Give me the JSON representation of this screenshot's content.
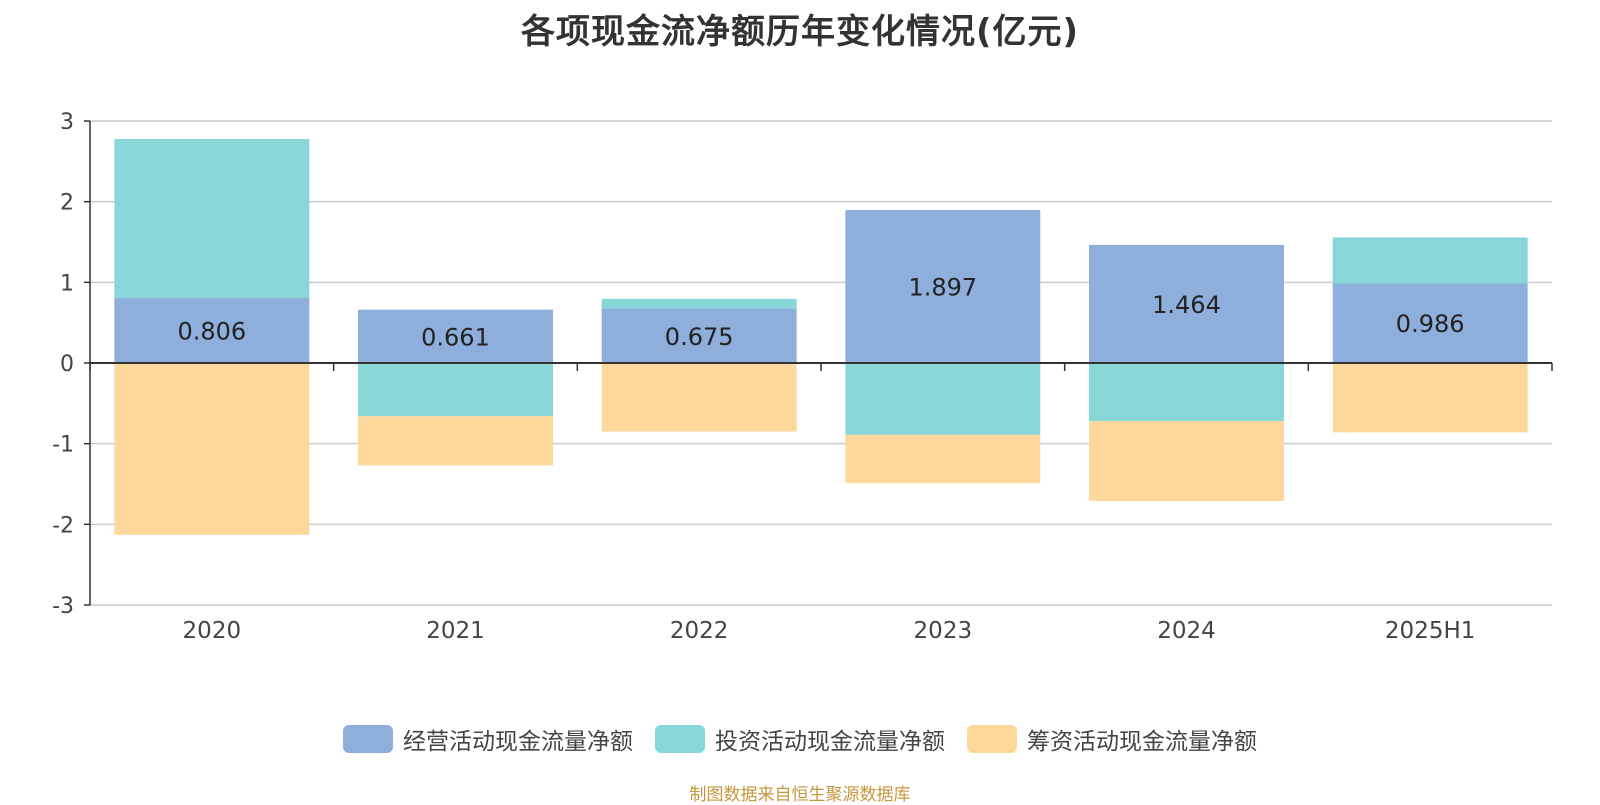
{
  "chart_data": {
    "type": "bar",
    "stacked": true,
    "title": "各项现金流净额历年变化情况(亿元)",
    "categories": [
      "2020",
      "2021",
      "2022",
      "2023",
      "2024",
      "2025H1"
    ],
    "ylim": [
      -3,
      3
    ],
    "yticks": [
      3,
      2,
      1,
      0,
      -1,
      -2,
      -3
    ],
    "grid": true,
    "legend_position": "bottom",
    "series": [
      {
        "name": "经营活动现金流量净额",
        "color": "#8eaedb",
        "values": [
          0.806,
          0.661,
          0.675,
          1.897,
          1.464,
          0.986
        ],
        "labels": [
          "0.806",
          "0.661",
          "0.675",
          "1.897",
          "1.464",
          "0.986"
        ]
      },
      {
        "name": "投资活动现金流量净额",
        "color": "#88d6d8",
        "values": [
          1.97,
          -0.66,
          0.12,
          -0.89,
          -0.72,
          0.57
        ]
      },
      {
        "name": "筹资活动现金流量净额",
        "color": "#fdd89a",
        "values": [
          -2.13,
          -0.61,
          -0.85,
          -0.6,
          -0.99,
          -0.86
        ]
      }
    ],
    "source": "制图数据来自恒生聚源数据库"
  }
}
